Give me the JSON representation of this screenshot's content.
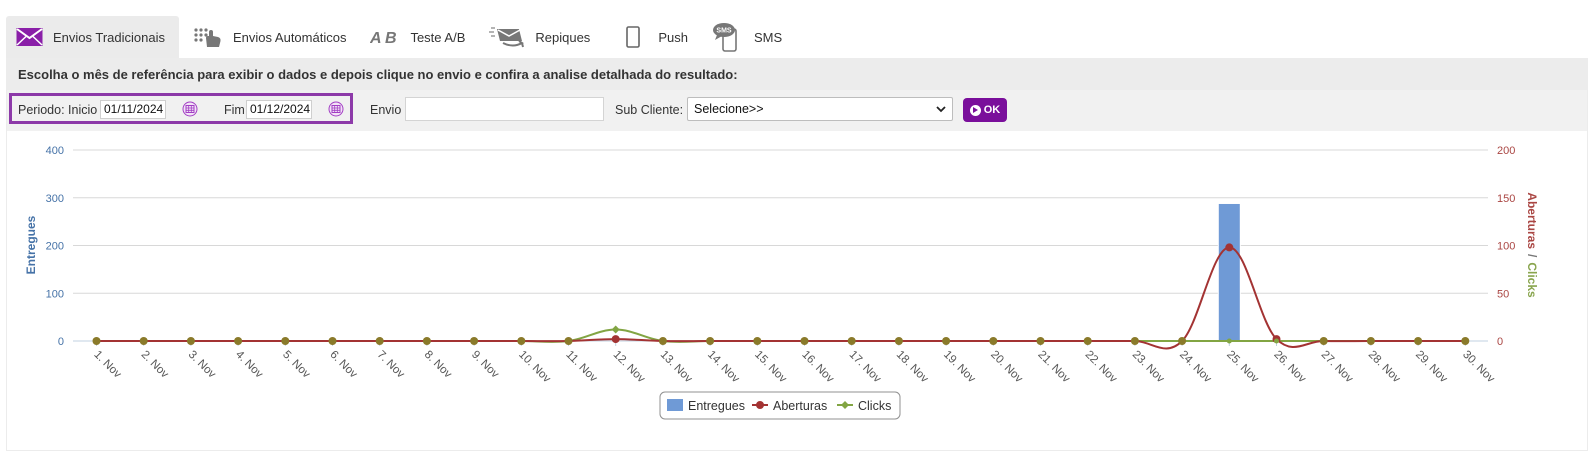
{
  "tabs": [
    {
      "label": "Envios Tradicionais",
      "icon": "envelope-icon",
      "active": true
    },
    {
      "label": "Envios Automáticos",
      "icon": "automation-hand-icon",
      "active": false
    },
    {
      "label": "Teste A/B",
      "icon": "ab-icon",
      "active": false
    },
    {
      "label": "Repiques",
      "icon": "resend-envelope-icon",
      "active": false
    },
    {
      "label": "Push",
      "icon": "mobile-phone-icon",
      "active": false
    },
    {
      "label": "SMS",
      "icon": "sms-phone-icon",
      "active": false
    }
  ],
  "instructions": "Escolha o mês de referência para exibir o dados e depois clique no envio e confira a analise detalhada do resultado:",
  "filters": {
    "periodo_label": "Periodo: Inicio",
    "inicio_value": "01/11/2024",
    "fim_label": "Fim",
    "fim_value": "01/12/2024",
    "envio_label": "Envio",
    "envio_value": "",
    "sub_cliente_label": "Sub Cliente:",
    "sub_cliente_value": "Selecione>>",
    "ok_label": "OK"
  },
  "colors": {
    "accent": "#7a0f9b",
    "entregues": "#6f9ad6",
    "aberturas": "#a33333",
    "clicks": "#82a543"
  },
  "chart_data": {
    "type": "bar",
    "categories": [
      "1. Nov",
      "2. Nov",
      "3. Nov",
      "4. Nov",
      "5. Nov",
      "6. Nov",
      "7. Nov",
      "8. Nov",
      "9. Nov",
      "10. Nov",
      "11. Nov",
      "12. Nov",
      "13. Nov",
      "14. Nov",
      "15. Nov",
      "16. Nov",
      "17. Nov",
      "18. Nov",
      "19. Nov",
      "20. Nov",
      "21. Nov",
      "22. Nov",
      "23. Nov",
      "24. Nov",
      "25. Nov",
      "26. Nov",
      "27. Nov",
      "28. Nov",
      "29. Nov",
      "30. Nov"
    ],
    "y_left": {
      "label": "Entregues",
      "ticks": [
        0,
        100,
        200,
        300,
        400
      ],
      "range": [
        0,
        400
      ]
    },
    "y_right": {
      "label_part1": "Aberturas",
      "separator": "/",
      "label_part2": "Clicks",
      "ticks": [
        0,
        50,
        100,
        150,
        200
      ],
      "range": [
        0,
        200
      ]
    },
    "series": [
      {
        "name": "Entregues",
        "type": "bar",
        "axis": "left",
        "values": [
          0,
          0,
          0,
          0,
          0,
          0,
          0,
          0,
          0,
          0,
          0,
          0,
          0,
          0,
          0,
          0,
          0,
          0,
          0,
          0,
          0,
          0,
          0,
          0,
          288,
          0,
          0,
          0,
          0,
          0
        ]
      },
      {
        "name": "Aberturas",
        "type": "spline",
        "axis": "right",
        "values": [
          0,
          0,
          0,
          0,
          0,
          0,
          0,
          0,
          0,
          0,
          0,
          2,
          0,
          0,
          0,
          0,
          0,
          0,
          0,
          0,
          0,
          0,
          0,
          0,
          98,
          2,
          0,
          0,
          0,
          0
        ]
      },
      {
        "name": "Clicks",
        "type": "spline",
        "axis": "right",
        "values": [
          0,
          0,
          0,
          0,
          0,
          0,
          0,
          0,
          0,
          0,
          0,
          12,
          0,
          0,
          0,
          0,
          0,
          0,
          0,
          0,
          0,
          0,
          0,
          0,
          0,
          0,
          0,
          0,
          0,
          0
        ]
      }
    ],
    "grid": true,
    "legend_position": "bottom-center"
  }
}
